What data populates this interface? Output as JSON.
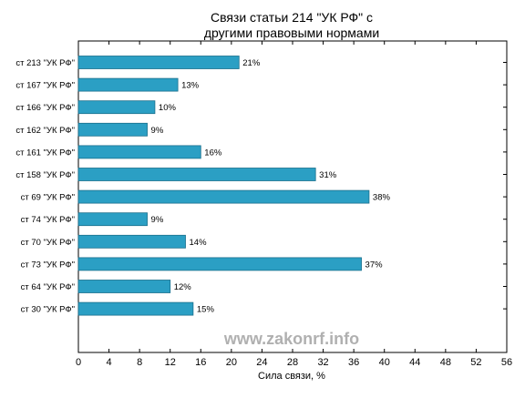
{
  "chart_data": {
    "type": "bar",
    "orientation": "horizontal",
    "title_lines": [
      "Связи статьи 214 \"УК РФ\" с",
      "другими правовыми нормами"
    ],
    "categories": [
      "ст 213 \"УК РФ\"",
      "ст 167 \"УК РФ\"",
      "ст 166 \"УК РФ\"",
      "ст 162 \"УК РФ\"",
      "ст 161 \"УК РФ\"",
      "ст 158 \"УК РФ\"",
      "ст 69 \"УК РФ\"",
      "ст 74 \"УК РФ\"",
      "ст 70 \"УК РФ\"",
      "ст 73 \"УК РФ\"",
      "ст 64 \"УК РФ\"",
      "ст 30 \"УК РФ\""
    ],
    "values": [
      21,
      13,
      10,
      9,
      16,
      31,
      38,
      9,
      14,
      37,
      12,
      15
    ],
    "value_labels": [
      "21%",
      "13%",
      "10%",
      "9%",
      "16%",
      "31%",
      "38%",
      "9%",
      "14%",
      "37%",
      "12%",
      "15%"
    ],
    "xlabel": "Сила связи, %",
    "ylabel": "",
    "xlim": [
      0,
      56
    ],
    "xticks": [
      0,
      4,
      8,
      12,
      16,
      20,
      24,
      28,
      32,
      36,
      40,
      44,
      48,
      52,
      56
    ],
    "grid": false,
    "legend": "none",
    "bar_color": "#2b9fc4",
    "bar_edge_color": "#1a6f8c",
    "watermark": "www.zakonrf.info"
  }
}
